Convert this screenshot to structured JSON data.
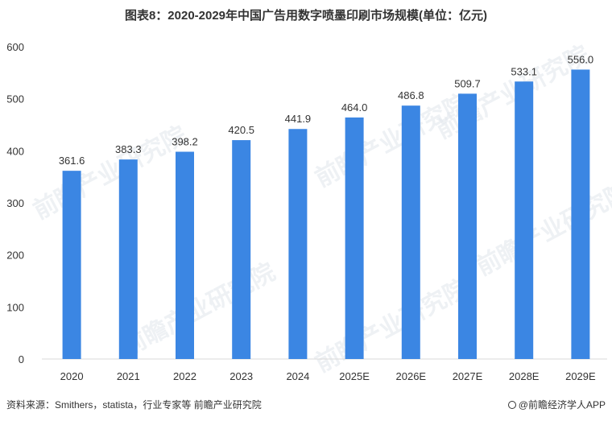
{
  "title": "图表8：2020-2029年中国广告用数字喷墨印刷市场规模(单位：亿元)",
  "footer": {
    "source": "资料来源：Smithers，statista，行业专家等 前瞻产业研究院",
    "brand": "@前瞻经济学人APP"
  },
  "watermark": "前瞻产业研究院",
  "chart_data": {
    "type": "bar",
    "categories": [
      "2020",
      "2021",
      "2022",
      "2023",
      "2024",
      "2025E",
      "2026E",
      "2027E",
      "2028E",
      "2029E"
    ],
    "values": [
      361.6,
      383.3,
      398.2,
      420.5,
      441.9,
      464.0,
      486.8,
      509.7,
      533.1,
      556.0
    ],
    "value_labels": [
      "361.6",
      "383.3",
      "398.2",
      "420.5",
      "441.9",
      "464.0",
      "486.8",
      "509.7",
      "533.1",
      "556.0"
    ],
    "ylim": [
      0,
      600
    ],
    "yticks": [
      "0",
      "100",
      "200",
      "300",
      "400",
      "500",
      "600"
    ],
    "grid": false,
    "legend": "none",
    "bar_color": "#3b86e3"
  }
}
